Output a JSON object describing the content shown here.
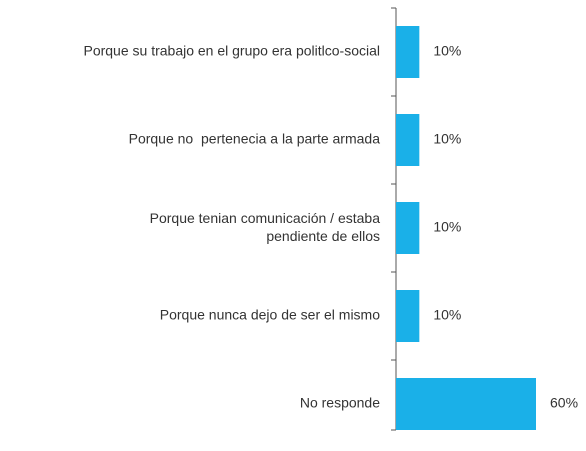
{
  "chart_data": {
    "type": "barh",
    "categories": [
      "Porque su trabajo en el grupo era politlco-social",
      "Porque no  pertenecia a la parte armada",
      "Porque tenian comunicación / estaba\npendiente de ellos",
      "Porque nunca dejo de ser el mismo",
      "No responde"
    ],
    "values": [
      10,
      10,
      10,
      10,
      60
    ],
    "value_labels": [
      "10%",
      "10%",
      "10%",
      "10%",
      "60%"
    ],
    "color": "#1ab0e8"
  }
}
